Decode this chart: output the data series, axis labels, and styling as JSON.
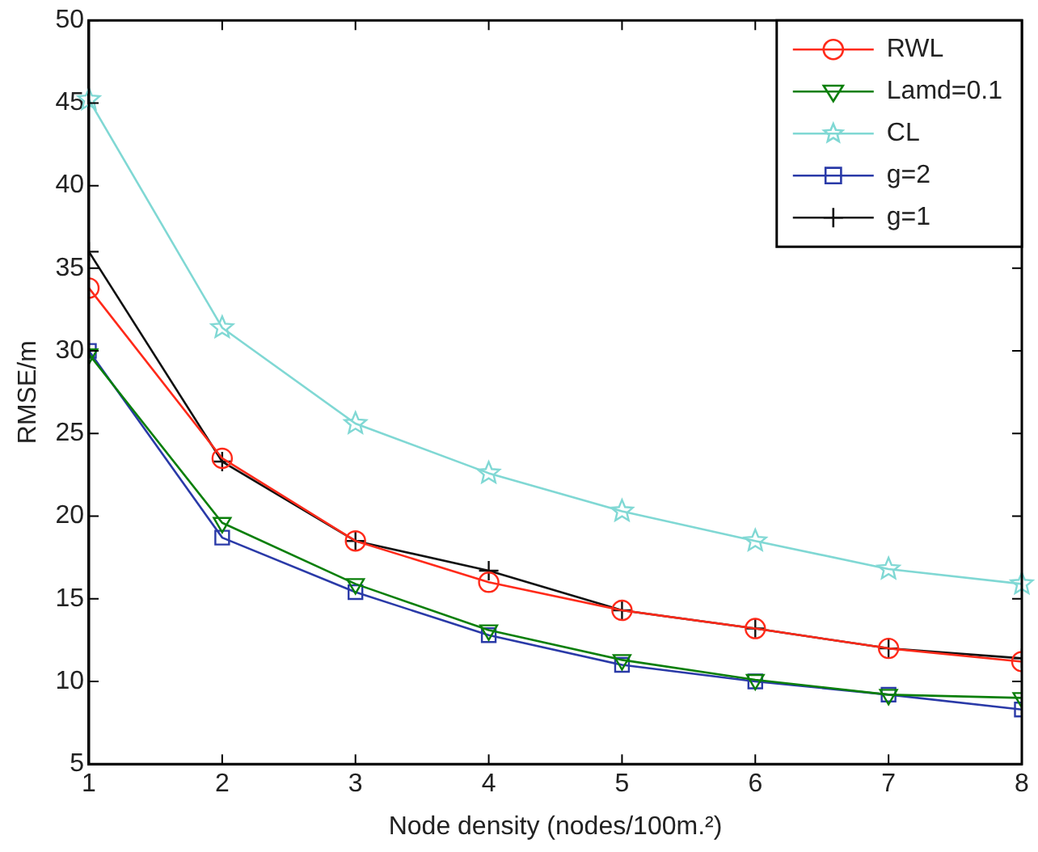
{
  "chart_data": {
    "type": "line",
    "xlabel": "Node density (nodes/100m.²)",
    "ylabel": "RMSE/m",
    "x": [
      1,
      2,
      3,
      4,
      5,
      6,
      7,
      8
    ],
    "xlim": [
      1,
      8
    ],
    "xticks": [
      1,
      2,
      3,
      4,
      5,
      6,
      7,
      8
    ],
    "ylim": [
      5,
      50
    ],
    "yticks": [
      5,
      10,
      15,
      20,
      25,
      30,
      35,
      40,
      45,
      50
    ],
    "grid": false,
    "legend": "top right",
    "line_style": "solid",
    "series": [
      {
        "name": "RWL",
        "color": "#ff2a1a",
        "marker": "circle",
        "values": [
          33.8,
          23.5,
          18.5,
          16.0,
          14.3,
          13.2,
          12.0,
          11.2
        ]
      },
      {
        "name": "Lamd=0.1",
        "color": "#0a7f0a",
        "marker": "triangle",
        "values": [
          29.8,
          19.6,
          15.9,
          13.1,
          11.3,
          10.1,
          9.2,
          9.0
        ]
      },
      {
        "name": "CL",
        "color": "#80d8d4",
        "marker": "star",
        "values": [
          45.2,
          31.4,
          25.6,
          22.6,
          20.3,
          18.5,
          16.8,
          15.9
        ]
      },
      {
        "name": "g=2",
        "color": "#2a3aa8",
        "marker": "square",
        "values": [
          30.0,
          18.7,
          15.4,
          12.8,
          11.0,
          10.0,
          9.2,
          8.3
        ]
      },
      {
        "name": "g=1",
        "color": "#111111",
        "marker": "cross",
        "values": [
          36.0,
          23.3,
          18.5,
          16.7,
          14.3,
          13.2,
          12.0,
          11.4
        ]
      }
    ]
  }
}
